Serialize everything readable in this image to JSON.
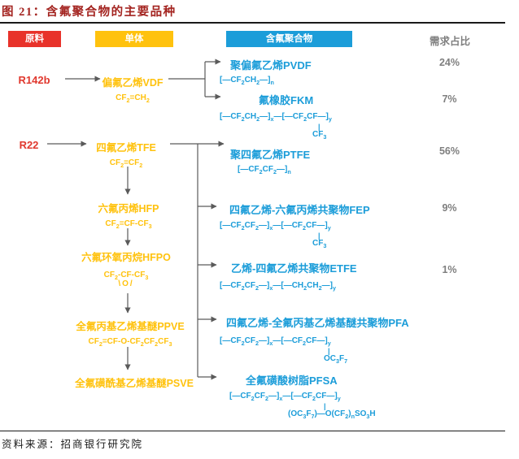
{
  "title": "图 21：含氟聚合物的主要品种",
  "source": "资料来源：招商银行研究院",
  "columns": {
    "raw_material": "原料",
    "monomer": "单体",
    "fluoropolymer": "含氟聚合物",
    "demand_share": "需求占比"
  },
  "colors": {
    "title_red": "#A3231F",
    "box_red": "#E8322A",
    "box_yellow": "#FFC20E",
    "box_blue": "#1C9DD9",
    "share_gray": "#7F7F7F",
    "wire_gray": "#5A5A5A"
  },
  "glyphs": {
    "bond": "|"
  },
  "raws": [
    {
      "label": "R142b"
    },
    {
      "label": "R22"
    }
  ],
  "monomers": [
    {
      "name": "偏氟乙烯VDF",
      "formula": "CF{2}=CH{2}"
    },
    {
      "name": "四氟乙烯TFE",
      "formula": "CF{2}=CF{2}"
    },
    {
      "name": "六氟丙烯HFP",
      "formula": "CF{2}=CF-CF{3}"
    },
    {
      "name": "六氟环氧丙烷HFPO",
      "formula": "CF{2}-CF-CF{3}",
      "formula2": "\\O/"
    },
    {
      "name": "全氟丙基乙烯基醚PPVE",
      "formula": "CF{2}=CF-O-CF{2}CF{2}CF{3}"
    },
    {
      "name": "全氟磺酰基乙烯基醚PSVE"
    }
  ],
  "polymers": [
    {
      "name": "聚偏氟乙烯PVDF",
      "formula": "[—CF{2}CH{2}—]{n}",
      "share": "24%"
    },
    {
      "name": "氟橡胶FKM",
      "formula": "[—CF{2}CH{2}—]{x}—[—CF{2}CF—]{y}",
      "pendant": "CF{3}",
      "share": "7%"
    },
    {
      "name": "聚四氟乙烯PTFE",
      "formula": "[—CF{2}CF{2}—]{n}",
      "share": "56%"
    },
    {
      "name": "四氟乙烯-六氟丙烯共聚物FEP",
      "formula": "[—CF{2}CF{2}—]{x}—[—CF{2}CF—]{y}",
      "pendant": "CF{3}",
      "share": "9%"
    },
    {
      "name": "乙烯-四氟乙烯共聚物ETFE",
      "formula": "[—CF{2}CF{2}—]{x}—[—CH{2}CH{2}—]{y}",
      "share": "1%"
    },
    {
      "name": "四氟乙烯-全氟丙基乙烯基醚共聚物PFA",
      "formula": "[—CF{2}CF{2}—]{x}—[—CF{2}CF—]{y}",
      "pendant": "OC{3}F{7}"
    },
    {
      "name": "全氟磺酸树脂PFSA",
      "formula": "[—CF{2}CF{2}—]{x}—[—CF{2}CF—]{y}",
      "pendant": "(OC{3}F{7})—O(CF{2}){n}SO{3}H"
    }
  ]
}
